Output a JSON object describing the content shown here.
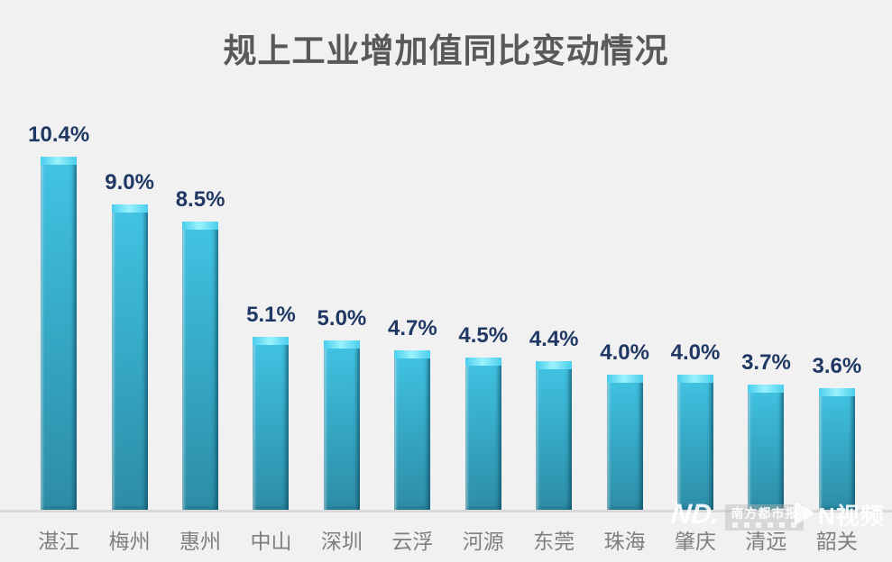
{
  "page": {
    "background_color": "#f1f1f1"
  },
  "title": {
    "text": "规上工业增加值同比变动情况",
    "color": "#595959"
  },
  "chart_data": {
    "type": "bar",
    "title": "规上工业增加值同比变动情况",
    "categories": [
      "湛江",
      "梅州",
      "惠州",
      "中山",
      "深圳",
      "云浮",
      "河源",
      "东莞",
      "珠海",
      "肇庆",
      "清远",
      "韶关"
    ],
    "values": [
      10.4,
      9.0,
      8.5,
      5.1,
      5.0,
      4.7,
      4.5,
      4.4,
      4.0,
      4.0,
      3.7,
      3.6
    ],
    "value_labels": [
      "10.4%",
      "9.0%",
      "8.5%",
      "5.1%",
      "5.0%",
      "4.7%",
      "4.5%",
      "4.4%",
      "4.0%",
      "4.0%",
      "3.7%",
      "3.6%"
    ],
    "unit": "%",
    "xlabel": "",
    "ylabel": "",
    "ylim": [
      0,
      12
    ],
    "grid": false,
    "legend": "none",
    "bar_color_top": "#42c4e4",
    "bar_color_bottom": "#2d8ca6",
    "bar_bevel_color": "#9bf2fd",
    "value_label_color": "#1f3864",
    "axis_label_color": "#7f7f7f",
    "axis_line_color": "#d9d9d9"
  },
  "watermarks": {
    "nd_logo_text": "ND.",
    "paper_badge_text": "南方都市报",
    "nvideo_text": "N视频"
  }
}
